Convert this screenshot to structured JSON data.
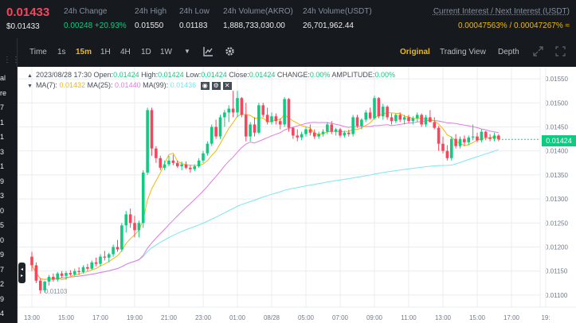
{
  "header": {
    "price": "0.01433",
    "price_usd": "$0.01433",
    "stats": [
      {
        "label": "24h Change",
        "value": "0.00248 +20.93%",
        "tone": "green"
      },
      {
        "label": "24h High",
        "value": "0.01550",
        "tone": "normal"
      },
      {
        "label": "24h Low",
        "value": "0.01183",
        "tone": "normal"
      },
      {
        "label": "24h Volume(AKRO)",
        "value": "1,888,733,030.00",
        "tone": "normal"
      },
      {
        "label": "24h Volume(USDT)",
        "value": "26,701,962.44",
        "tone": "normal"
      }
    ],
    "interest_label": "Current Interest / Next Interest (USDT)",
    "interest_value": "0.00047563% / 0.00047267% ≈"
  },
  "left_strip": {
    "labels": [
      "al",
      "re",
      "7",
      "1",
      "1",
      "3",
      "1",
      "9",
      "3",
      "0",
      "5",
      "0",
      "9",
      "7",
      "2",
      "9",
      "4"
    ]
  },
  "toolbar": {
    "items": [
      "Time",
      "1s",
      "15m",
      "1H",
      "4H",
      "1D",
      "1W"
    ],
    "active": "15m",
    "views": [
      "Original",
      "Trading View",
      "Depth"
    ],
    "active_view": "Original",
    "icons": [
      "chevron-down-icon",
      "chart-type-icon",
      "gear-icon",
      "expand-icon",
      "fullscreen-icon"
    ]
  },
  "legend": {
    "ohlc": {
      "date": "2023/08/28 17:30",
      "open_label": "Open:",
      "open": "0.01424",
      "high_label": "High:",
      "high": "0.01424",
      "low_label": "Low:",
      "low": "0.01424",
      "close_label": "Close:",
      "close": "0.01424",
      "change_label": "CHANGE:",
      "change": "0.00%",
      "amplitude_label": "AMPLITUDE:",
      "amplitude": "0.00%"
    },
    "ma": {
      "ma7_label": "MA(7):",
      "ma7": "0.01432",
      "ma25_label": "MA(25):",
      "ma25": "0.01440",
      "ma99_label": "MA(99):",
      "ma99": "0.01436"
    }
  },
  "price_tag": "0.01424",
  "low_marker": "0.01103",
  "colors": {
    "up": "#0ecb81",
    "down": "#f6465d",
    "ma7": "#f0b90b",
    "ma25": "#e07be0",
    "ma99": "#7fe5f0"
  },
  "chart_data": {
    "type": "candlestick",
    "y_ticks": [
      0.0155,
      0.015,
      0.0145,
      0.014,
      0.0135,
      0.013,
      0.0125,
      0.012,
      0.0115,
      0.011
    ],
    "y_tick_labels": [
      "0.01550",
      "0.01500",
      "0.01450",
      "0.01400",
      "0.01350",
      "0.01300",
      "0.01250",
      "0.01200",
      "0.01150",
      "0.01100"
    ],
    "ylim": [
      0.01075,
      0.01575
    ],
    "x_tick_labels": [
      "13:00",
      "15:00",
      "17:00",
      "19:00",
      "21:00",
      "23:00",
      "01:00",
      "08/28",
      "05:00",
      "07:00",
      "09:00",
      "11:00",
      "13:00",
      "15:00",
      "17:00",
      "19:"
    ],
    "x_start": "2023/08/27 12:00",
    "interval_minutes": 15,
    "candles": [
      [
        0.0118,
        0.0119,
        0.0115,
        0.01162
      ],
      [
        0.01162,
        0.01168,
        0.01125,
        0.0113
      ],
      [
        0.0113,
        0.01135,
        0.01103,
        0.0111
      ],
      [
        0.0111,
        0.0113,
        0.01105,
        0.01128
      ],
      [
        0.01128,
        0.01142,
        0.0112,
        0.01138
      ],
      [
        0.01138,
        0.01145,
        0.01128,
        0.01132
      ],
      [
        0.01132,
        0.01148,
        0.01128,
        0.01145
      ],
      [
        0.01145,
        0.0115,
        0.01135,
        0.0114
      ],
      [
        0.0114,
        0.0115,
        0.01132,
        0.01146
      ],
      [
        0.01146,
        0.01152,
        0.0114,
        0.01143
      ],
      [
        0.01143,
        0.01155,
        0.0114,
        0.0115
      ],
      [
        0.0115,
        0.01158,
        0.01142,
        0.01148
      ],
      [
        0.01148,
        0.01162,
        0.01145,
        0.01158
      ],
      [
        0.01158,
        0.01165,
        0.0115,
        0.01155
      ],
      [
        0.01155,
        0.01172,
        0.01152,
        0.01168
      ],
      [
        0.01168,
        0.01178,
        0.0116,
        0.01165
      ],
      [
        0.01165,
        0.01185,
        0.0116,
        0.0118
      ],
      [
        0.0118,
        0.01192,
        0.01172,
        0.01178
      ],
      [
        0.01178,
        0.01188,
        0.01168,
        0.01185
      ],
      [
        0.01185,
        0.01205,
        0.0118,
        0.012
      ],
      [
        0.012,
        0.01215,
        0.0119,
        0.01195
      ],
      [
        0.01195,
        0.0125,
        0.0119,
        0.01245
      ],
      [
        0.01245,
        0.01275,
        0.0123,
        0.01268
      ],
      [
        0.01268,
        0.0128,
        0.0124,
        0.0125
      ],
      [
        0.0125,
        0.01265,
        0.0122,
        0.01235
      ],
      [
        0.01235,
        0.01255,
        0.0122,
        0.0125
      ],
      [
        0.0125,
        0.0136,
        0.0124,
        0.01355
      ],
      [
        0.01355,
        0.0149,
        0.0135,
        0.01485
      ],
      [
        0.01485,
        0.0149,
        0.0139,
        0.01405
      ],
      [
        0.01405,
        0.0141,
        0.01375,
        0.01385
      ],
      [
        0.01385,
        0.0139,
        0.0136,
        0.01365
      ],
      [
        0.01365,
        0.0138,
        0.0136,
        0.01372
      ],
      [
        0.01372,
        0.0139,
        0.01368,
        0.0138
      ],
      [
        0.0138,
        0.01392,
        0.0137,
        0.01375
      ],
      [
        0.01375,
        0.0138,
        0.01365,
        0.01368
      ],
      [
        0.01368,
        0.01378,
        0.0136,
        0.01372
      ],
      [
        0.01372,
        0.01378,
        0.01362,
        0.01365
      ],
      [
        0.01365,
        0.0137,
        0.01355,
        0.01362
      ],
      [
        0.01362,
        0.01372,
        0.01358,
        0.01368
      ],
      [
        0.01368,
        0.01385,
        0.01365,
        0.0138
      ],
      [
        0.0138,
        0.014,
        0.01375,
        0.01395
      ],
      [
        0.01395,
        0.0142,
        0.0139,
        0.01415
      ],
      [
        0.01415,
        0.01455,
        0.0141,
        0.0145
      ],
      [
        0.0145,
        0.01465,
        0.01425,
        0.0143
      ],
      [
        0.0143,
        0.01475,
        0.01425,
        0.0147
      ],
      [
        0.0147,
        0.01485,
        0.0145,
        0.0148
      ],
      [
        0.0148,
        0.01495,
        0.0146,
        0.01488
      ],
      [
        0.01488,
        0.01525,
        0.0147,
        0.0148
      ],
      [
        0.0148,
        0.01525,
        0.0147,
        0.0151
      ],
      [
        0.0151,
        0.01512,
        0.0147,
        0.01475
      ],
      [
        0.01475,
        0.015,
        0.0142,
        0.0143
      ],
      [
        0.0143,
        0.0146,
        0.0142,
        0.01455
      ],
      [
        0.01455,
        0.0147,
        0.0143,
        0.01438
      ],
      [
        0.01438,
        0.015,
        0.01435,
        0.01495
      ],
      [
        0.01495,
        0.015,
        0.0147,
        0.01475
      ],
      [
        0.01475,
        0.0149,
        0.01455,
        0.0146
      ],
      [
        0.0146,
        0.0148,
        0.01455,
        0.01472
      ],
      [
        0.01472,
        0.01478,
        0.01455,
        0.01462
      ],
      [
        0.01462,
        0.01468,
        0.01445,
        0.01455
      ],
      [
        0.01455,
        0.01512,
        0.0145,
        0.01508
      ],
      [
        0.01508,
        0.0151,
        0.0144,
        0.01448
      ],
      [
        0.01448,
        0.0145,
        0.01425,
        0.01432
      ],
      [
        0.01432,
        0.01445,
        0.0142,
        0.01428
      ],
      [
        0.01428,
        0.0144,
        0.01422,
        0.01435
      ],
      [
        0.01435,
        0.0145,
        0.0143,
        0.01445
      ],
      [
        0.01445,
        0.01455,
        0.01432,
        0.01438
      ],
      [
        0.01438,
        0.01445,
        0.01425,
        0.0143
      ],
      [
        0.0143,
        0.0144,
        0.01425,
        0.01435
      ],
      [
        0.01435,
        0.01445,
        0.0143,
        0.0144
      ],
      [
        0.0144,
        0.0146,
        0.01435,
        0.01455
      ],
      [
        0.01455,
        0.01462,
        0.01435,
        0.0144
      ],
      [
        0.0144,
        0.01448,
        0.01432,
        0.01445
      ],
      [
        0.01445,
        0.01448,
        0.01428,
        0.01432
      ],
      [
        0.01432,
        0.01442,
        0.01428,
        0.01438
      ],
      [
        0.01438,
        0.01444,
        0.0143,
        0.01435
      ],
      [
        0.01435,
        0.01475,
        0.0143,
        0.0147
      ],
      [
        0.0147,
        0.01475,
        0.01448,
        0.01452
      ],
      [
        0.01452,
        0.01468,
        0.01445,
        0.01465
      ],
      [
        0.01465,
        0.01485,
        0.0146,
        0.0148
      ],
      [
        0.0148,
        0.0149,
        0.01465,
        0.01468
      ],
      [
        0.01468,
        0.01515,
        0.01465,
        0.0151
      ],
      [
        0.0151,
        0.01512,
        0.01468,
        0.01472
      ],
      [
        0.01472,
        0.01498,
        0.01465,
        0.01492
      ],
      [
        0.01492,
        0.01495,
        0.01465,
        0.0147
      ],
      [
        0.0147,
        0.01478,
        0.01455,
        0.01462
      ],
      [
        0.01462,
        0.01478,
        0.01458,
        0.01475
      ],
      [
        0.01475,
        0.0148,
        0.0146,
        0.01465
      ],
      [
        0.01465,
        0.01475,
        0.01455,
        0.0147
      ],
      [
        0.0147,
        0.01475,
        0.01458,
        0.01462
      ],
      [
        0.01462,
        0.01472,
        0.01455,
        0.01468
      ],
      [
        0.01468,
        0.0148,
        0.0146,
        0.01475
      ],
      [
        0.01475,
        0.01478,
        0.0145,
        0.01455
      ],
      [
        0.01455,
        0.01475,
        0.0145,
        0.0147
      ],
      [
        0.0147,
        0.01485,
        0.01465,
        0.0146
      ],
      [
        0.0146,
        0.0147,
        0.01445,
        0.01448
      ],
      [
        0.01448,
        0.01452,
        0.014,
        0.01415
      ],
      [
        0.01415,
        0.0143,
        0.01395,
        0.014
      ],
      [
        0.014,
        0.01412,
        0.0138,
        0.01385
      ],
      [
        0.01385,
        0.0143,
        0.0138,
        0.01425
      ],
      [
        0.01425,
        0.01435,
        0.01405,
        0.0141
      ],
      [
        0.0141,
        0.0143,
        0.01405,
        0.01425
      ],
      [
        0.01425,
        0.01432,
        0.0141,
        0.01418
      ],
      [
        0.01418,
        0.01432,
        0.01412,
        0.01428
      ],
      [
        0.01428,
        0.01455,
        0.01422,
        0.0143
      ],
      [
        0.0143,
        0.01438,
        0.01418,
        0.01422
      ],
      [
        0.01422,
        0.01445,
        0.01418,
        0.0144
      ],
      [
        0.0144,
        0.01442,
        0.01422,
        0.01428
      ],
      [
        0.01428,
        0.01435,
        0.0142,
        0.01425
      ],
      [
        0.01425,
        0.01438,
        0.0142,
        0.01432
      ],
      [
        0.01432,
        0.01435,
        0.0142,
        0.01424
      ]
    ]
  }
}
